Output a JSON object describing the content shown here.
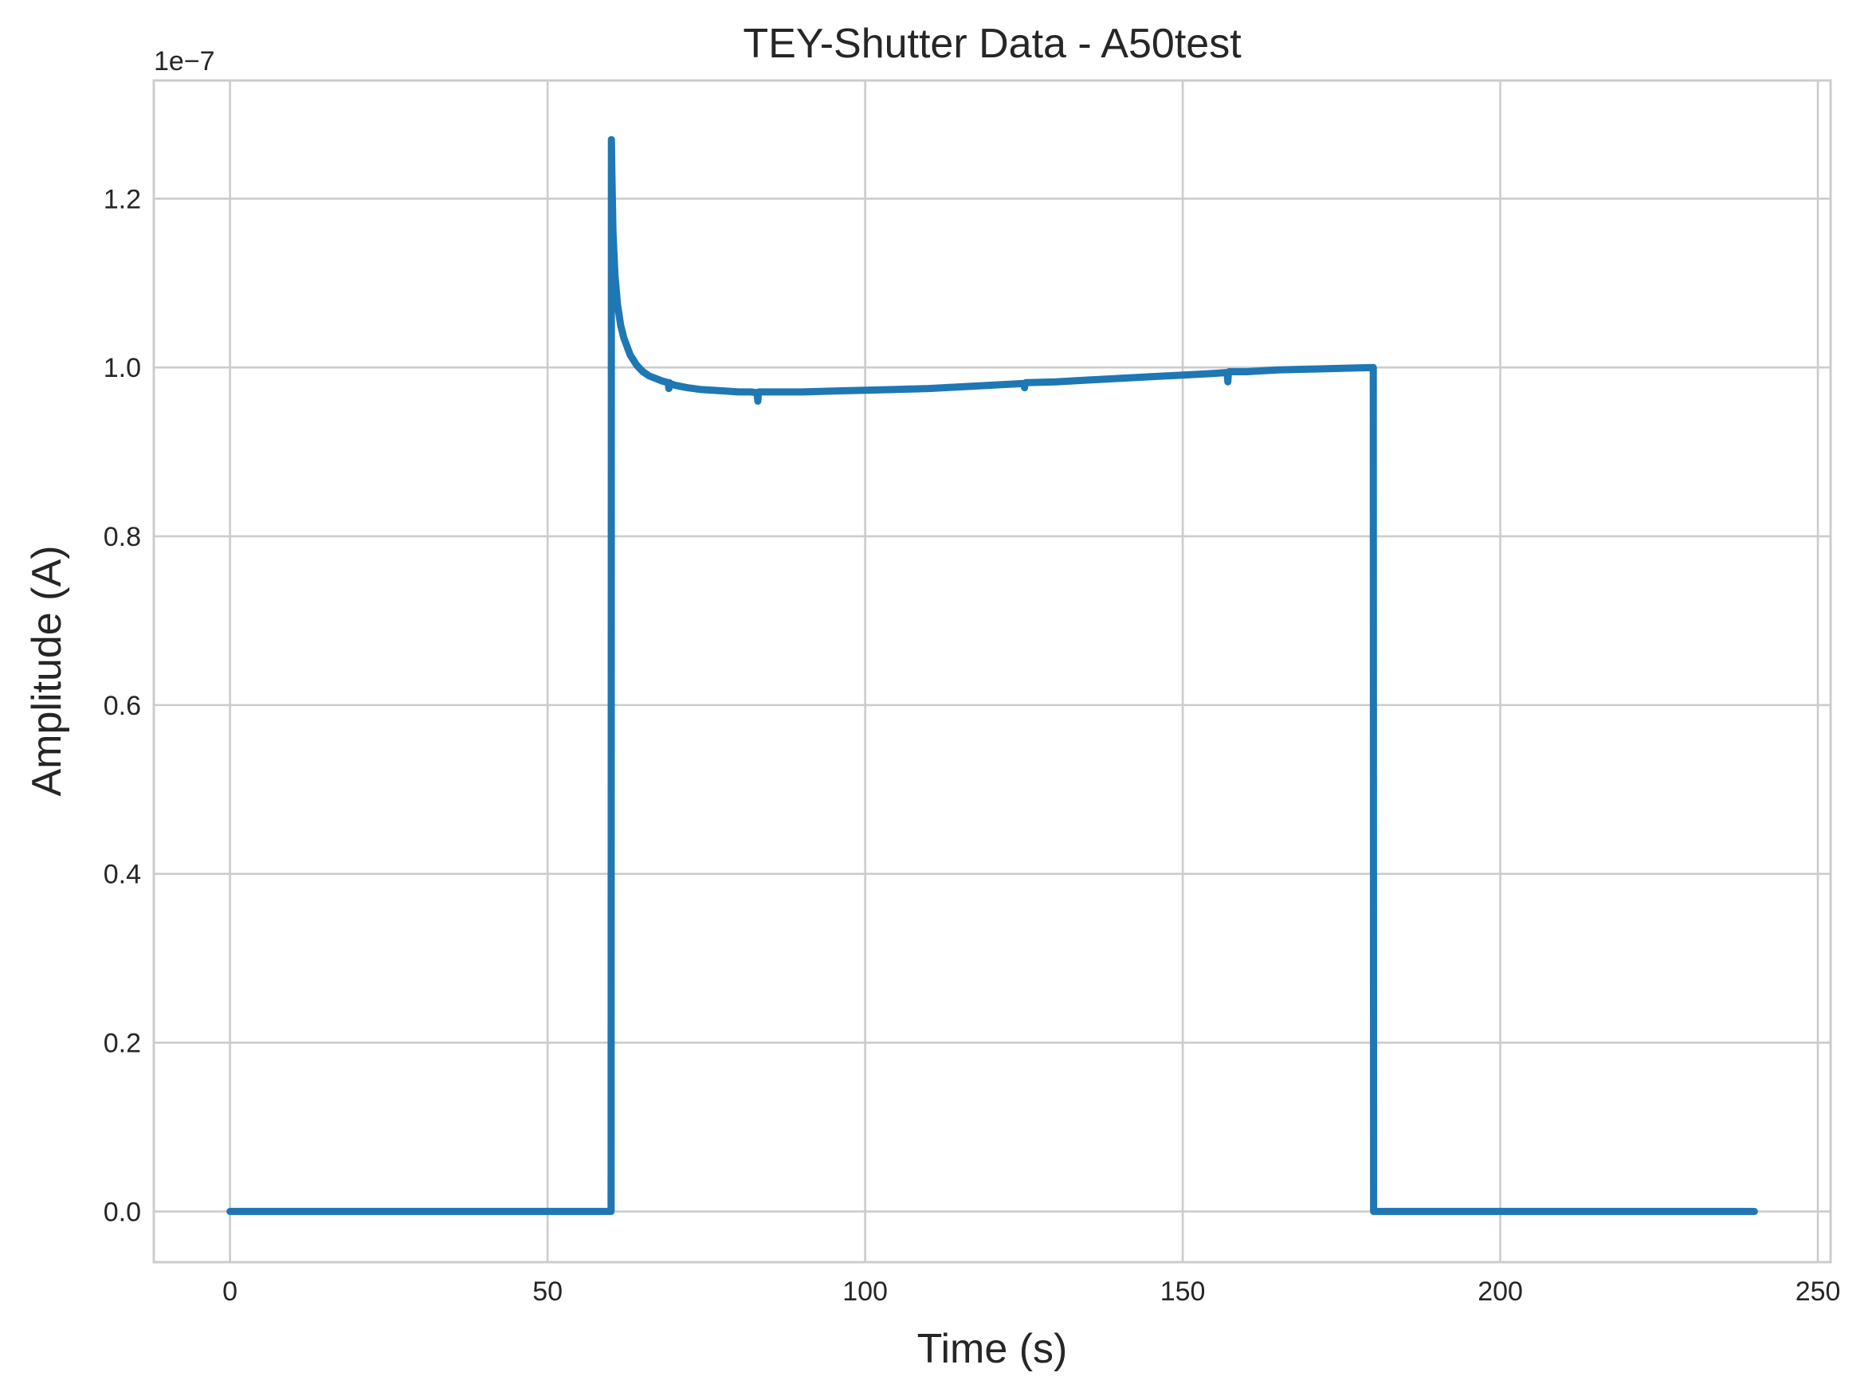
{
  "chart_data": {
    "type": "line",
    "title": "TEY-Shutter Data - A50test",
    "xlabel": "Time (s)",
    "ylabel": "Amplitude (A)",
    "y_offset_label": "1e−7",
    "y_scale": 1e-07,
    "xlim": [
      -12,
      252
    ],
    "ylim": [
      -0.06,
      1.34
    ],
    "grid": true,
    "x_ticks": [
      0,
      50,
      100,
      150,
      200,
      250
    ],
    "x_tick_labels": [
      "0",
      "50",
      "100",
      "150",
      "200",
      "250"
    ],
    "y_ticks": [
      0.0,
      0.2,
      0.4,
      0.6,
      0.8,
      1.0,
      1.2
    ],
    "y_tick_labels": [
      "0.0",
      "0.2",
      "0.4",
      "0.6",
      "0.8",
      "1.0",
      "1.2"
    ],
    "series": [
      {
        "name": "TEY-Shutter",
        "color": "#1f77b4",
        "x": [
          0,
          60,
          60.05,
          60.1,
          60.3,
          60.6,
          61,
          61.5,
          62,
          63,
          64,
          65,
          66,
          67,
          68,
          69,
          69.1,
          69.2,
          69.3,
          70,
          72,
          74,
          76,
          78,
          80,
          82,
          83,
          83.1,
          83.2,
          83.3,
          84,
          86,
          90,
          95,
          100,
          105,
          110,
          115,
          120,
          125,
          125.1,
          125.2,
          125.3,
          130,
          135,
          140,
          145,
          150,
          155,
          157,
          157.1,
          157.2,
          157.3,
          160,
          165,
          170,
          175,
          180,
          180.05,
          185,
          200,
          220,
          240
        ],
        "y": [
          0.0,
          0.0,
          1.27,
          1.24,
          1.16,
          1.11,
          1.075,
          1.05,
          1.035,
          1.015,
          1.003,
          0.995,
          0.99,
          0.987,
          0.984,
          0.982,
          0.975,
          0.982,
          0.981,
          0.979,
          0.976,
          0.974,
          0.973,
          0.972,
          0.971,
          0.971,
          0.97,
          0.96,
          0.97,
          0.971,
          0.971,
          0.971,
          0.971,
          0.972,
          0.973,
          0.974,
          0.975,
          0.977,
          0.979,
          0.981,
          0.976,
          0.981,
          0.982,
          0.983,
          0.985,
          0.987,
          0.989,
          0.991,
          0.993,
          0.994,
          0.983,
          0.994,
          0.995,
          0.995,
          0.997,
          0.998,
          0.999,
          1.0,
          0.0,
          0.0,
          0.0,
          0.0,
          0.0
        ]
      }
    ]
  }
}
